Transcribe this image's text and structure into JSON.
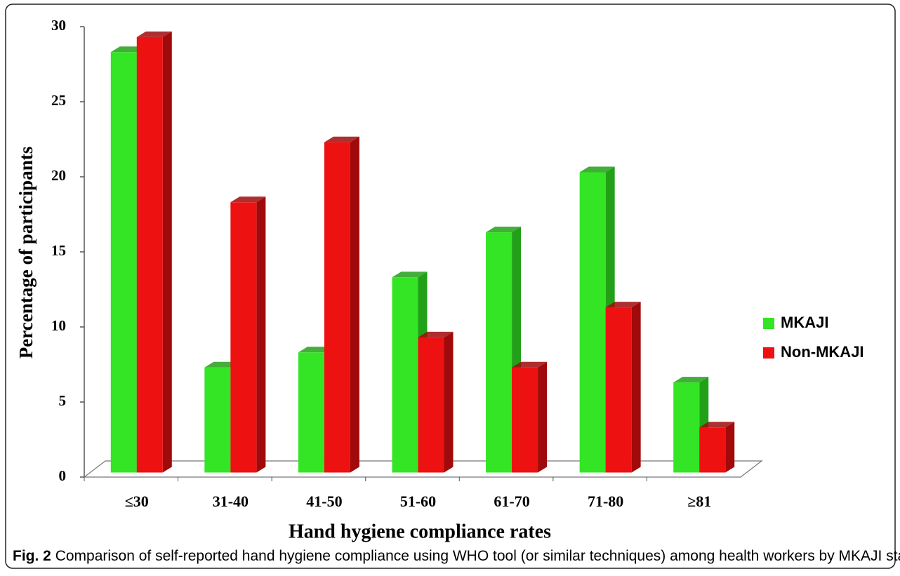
{
  "chart_data": {
    "type": "bar3d",
    "y_label": "Percentage of participants",
    "x_label": "Hand hygiene compliance rates",
    "figure_label": "Fig. 2",
    "caption": "Comparison of self-reported hand hygiene compliance using WHO tool (or similar techniques) among health workers by MKAJI status",
    "categories": [
      "≤30",
      "31-40",
      "41-50",
      "51-60",
      "61-70",
      "71-80",
      "≥81"
    ],
    "series": [
      {
        "name": "MKAJI",
        "color": "#33e524",
        "side": "#22a018",
        "values": [
          28,
          7,
          8,
          13,
          16,
          20,
          6
        ]
      },
      {
        "name": "Non-MKAJI",
        "color": "#ee1111",
        "side": "#a00a0a",
        "values": [
          29,
          18,
          22,
          9,
          7,
          11,
          3
        ]
      }
    ],
    "ylim": [
      0,
      30
    ],
    "yticks": [
      0,
      5,
      10,
      15,
      20,
      25,
      30
    ],
    "legend": "right"
  }
}
